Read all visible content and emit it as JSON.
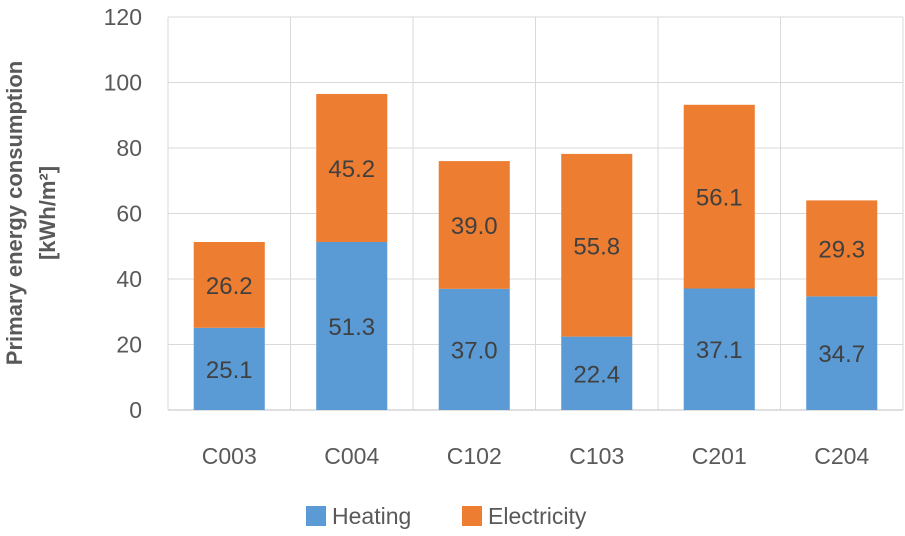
{
  "chart_data": {
    "type": "bar",
    "stacked": true,
    "title": "",
    "categories": [
      "C003",
      "C004",
      "C102",
      "C103",
      "C201",
      "C204"
    ],
    "series": [
      {
        "name": "Heating",
        "color": "#5B9BD5",
        "values": [
          25.1,
          51.3,
          37.0,
          22.4,
          37.1,
          34.7
        ],
        "labels": [
          "25.1",
          "51.3",
          "37.0",
          "22.4",
          "37.1",
          "34.7"
        ]
      },
      {
        "name": "Electricity",
        "color": "#ED7D31",
        "values": [
          26.2,
          45.2,
          39.0,
          55.8,
          56.1,
          29.3
        ],
        "labels": [
          "26.2",
          "45.2",
          "39.0",
          "55.8",
          "56.1",
          "29.3"
        ]
      }
    ],
    "xlabel": "",
    "ylabel_line1": "Primary energy consumption",
    "ylabel_line2": "[kWh/m²]",
    "ylim": [
      0,
      120
    ],
    "yticks": [
      0,
      20,
      40,
      60,
      80,
      100,
      120
    ],
    "ytick_labels": [
      "0",
      "20",
      "40",
      "60",
      "80",
      "100",
      "120"
    ],
    "grid": "vertical and horizontal",
    "legend_position": "bottom"
  }
}
